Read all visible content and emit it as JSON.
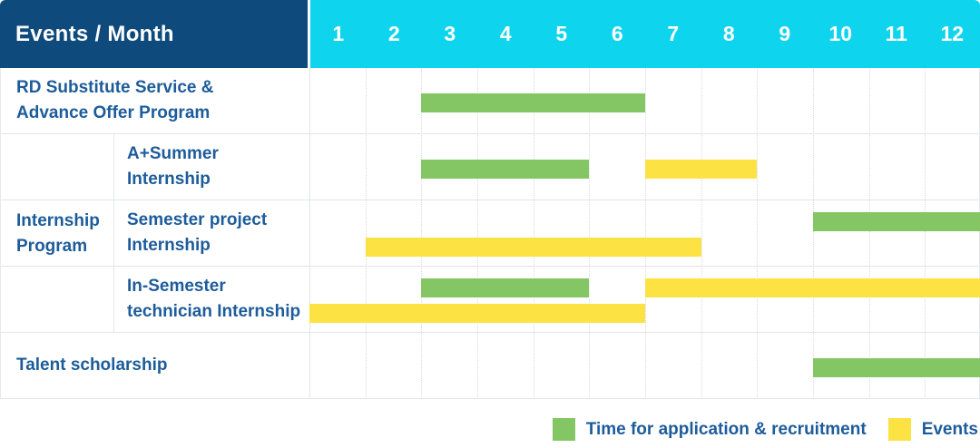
{
  "colors": {
    "navy": "#0f4a7c",
    "cyan": "#0fd4ee",
    "green": "#83c663",
    "yellow": "#fde244",
    "label_text": "#1d5c9b",
    "grid_solid": "#e3e5e8",
    "grid_dotted": "#d7dade",
    "header_text": "#ffffff"
  },
  "chart_data": {
    "type": "gantt",
    "title": "Events / Month",
    "corner_label": "Events / Month",
    "months": [
      "1",
      "2",
      "3",
      "4",
      "5",
      "6",
      "7",
      "8",
      "9",
      "10",
      "11",
      "12"
    ],
    "legend_position": "bottom-right",
    "grid": true,
    "kinds": {
      "application": "green",
      "event": "yellow"
    },
    "rows": [
      {
        "name": "rd-substitute-service",
        "label": "RD Substitute Service & Advance Offer Program",
        "label_lines": [
          "RD Substitute Service &",
          "Advance Offer Program"
        ],
        "indent": false,
        "bars": [
          {
            "kind": "application",
            "start": 3,
            "end": 6,
            "lane": "center"
          }
        ]
      },
      {
        "name": "a-plus-summer-internship",
        "label": "A+Summer Internship",
        "label_lines": [
          "A+Summer",
          "Internship"
        ],
        "indent": true,
        "bars": [
          {
            "kind": "application",
            "start": 3,
            "end": 5,
            "lane": "center"
          },
          {
            "kind": "event",
            "start": 7,
            "end": 8,
            "lane": "center"
          }
        ]
      },
      {
        "name": "semester-project-internship",
        "label": "Semester project Internship",
        "label_lines": [
          "Semester project",
          "Internship"
        ],
        "indent": true,
        "bars": [
          {
            "kind": "application",
            "start": 10,
            "end": 12,
            "lane": "top"
          },
          {
            "kind": "event",
            "start": 2,
            "end": 7,
            "lane": "bottom"
          }
        ]
      },
      {
        "name": "in-semester-technician-internship",
        "label": "In-Semester technician Internship",
        "label_lines": [
          "In-Semester",
          "technician Internship"
        ],
        "indent": true,
        "bars": [
          {
            "kind": "application",
            "start": 3,
            "end": 5,
            "lane": "top"
          },
          {
            "kind": "event",
            "start": 7,
            "end": 12,
            "lane": "top"
          },
          {
            "kind": "event",
            "start": 1,
            "end": 6,
            "lane": "bottom"
          }
        ]
      },
      {
        "name": "talent-scholarship",
        "label": "Talent scholarship",
        "label_lines": [
          "Talent scholarship"
        ],
        "indent": false,
        "bars": [
          {
            "kind": "application",
            "start": 10,
            "end": 12,
            "lane": "center"
          }
        ]
      }
    ],
    "group": {
      "name": "internship-program",
      "label": "Internship Program",
      "label_lines": [
        "Internship",
        "Program"
      ],
      "first_row_index": 1,
      "row_count": 3
    },
    "legend": [
      {
        "kind": "application",
        "label": "Time for application & recruitment"
      },
      {
        "kind": "event",
        "label": "Events"
      }
    ]
  }
}
